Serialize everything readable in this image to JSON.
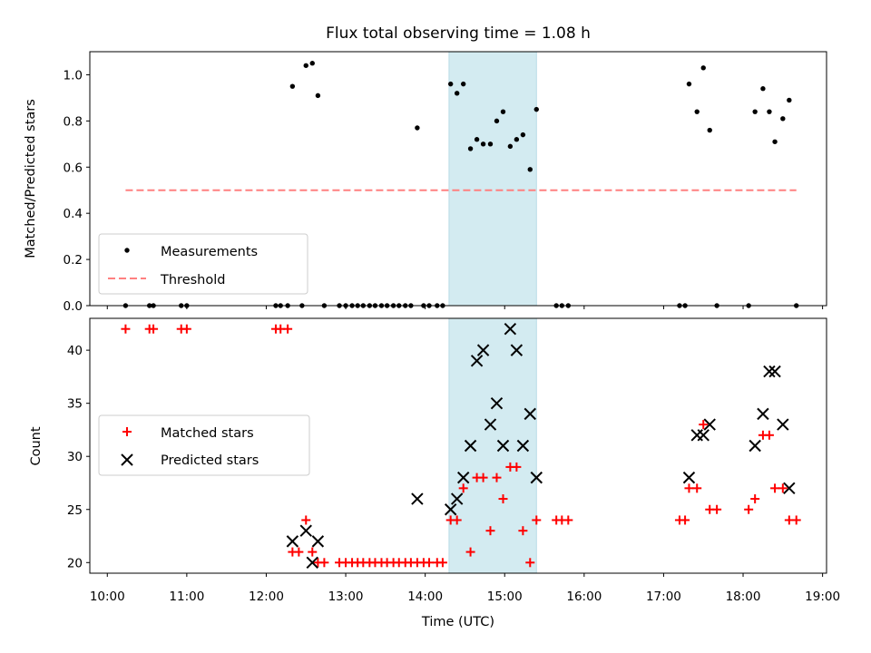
{
  "chart_data": {
    "type": "scatter",
    "title": "Flux total observing time = 1.08 h",
    "xlabel": "Time (UTC)",
    "xlim": [
      9.78,
      19.05
    ],
    "x_ticks": [
      10,
      11,
      12,
      13,
      14,
      15,
      16,
      17,
      18,
      19
    ],
    "x_tick_labels": [
      "10:00",
      "11:00",
      "12:00",
      "13:00",
      "14:00",
      "15:00",
      "16:00",
      "17:00",
      "18:00",
      "19:00"
    ],
    "highlight_span": [
      14.3,
      15.4
    ],
    "colors": {
      "highlight": "#d3ebf1",
      "threshold": "#ff8080",
      "matched": "#ff0000",
      "predicted": "#000000"
    },
    "top": {
      "ylabel": "Matched/Predicted stars",
      "ylim": [
        0,
        1.1
      ],
      "y_ticks": [
        0.0,
        0.2,
        0.4,
        0.6,
        0.8,
        1.0
      ],
      "y_tick_labels": [
        "0.0",
        "0.2",
        "0.4",
        "0.6",
        "0.8",
        "1.0"
      ],
      "legend": {
        "placement": "lower-left",
        "entries": [
          "Measurements",
          "Threshold"
        ]
      },
      "threshold": {
        "name": "Threshold",
        "y": 0.5,
        "x_range": [
          10.23,
          18.67
        ]
      },
      "measurements": {
        "name": "Measurements",
        "points": [
          [
            10.23,
            0
          ],
          [
            10.53,
            0
          ],
          [
            10.58,
            0
          ],
          [
            10.93,
            0
          ],
          [
            11.0,
            0
          ],
          [
            12.12,
            0
          ],
          [
            12.18,
            0
          ],
          [
            12.27,
            0
          ],
          [
            12.33,
            0.95
          ],
          [
            12.45,
            0
          ],
          [
            12.5,
            1.04
          ],
          [
            12.58,
            1.05
          ],
          [
            12.65,
            0.91
          ],
          [
            12.73,
            0
          ],
          [
            12.92,
            0
          ],
          [
            13.0,
            0
          ],
          [
            13.08,
            0
          ],
          [
            13.15,
            0
          ],
          [
            13.22,
            0
          ],
          [
            13.3,
            0
          ],
          [
            13.37,
            0
          ],
          [
            13.45,
            0
          ],
          [
            13.52,
            0
          ],
          [
            13.6,
            0
          ],
          [
            13.67,
            0
          ],
          [
            13.75,
            0
          ],
          [
            13.82,
            0
          ],
          [
            13.9,
            0.77
          ],
          [
            13.98,
            0
          ],
          [
            14.05,
            0
          ],
          [
            14.15,
            0
          ],
          [
            14.22,
            0
          ],
          [
            14.32,
            0.96
          ],
          [
            14.4,
            0.92
          ],
          [
            14.48,
            0.96
          ],
          [
            14.57,
            0.68
          ],
          [
            14.65,
            0.72
          ],
          [
            14.73,
            0.7
          ],
          [
            14.82,
            0.7
          ],
          [
            14.9,
            0.8
          ],
          [
            14.98,
            0.84
          ],
          [
            15.07,
            0.69
          ],
          [
            15.15,
            0.72
          ],
          [
            15.23,
            0.74
          ],
          [
            15.32,
            0.59
          ],
          [
            15.4,
            0.85
          ],
          [
            15.65,
            0
          ],
          [
            15.72,
            0
          ],
          [
            15.8,
            0
          ],
          [
            17.2,
            0
          ],
          [
            17.27,
            0
          ],
          [
            17.32,
            0.96
          ],
          [
            17.42,
            0.84
          ],
          [
            17.5,
            1.03
          ],
          [
            17.58,
            0.76
          ],
          [
            17.67,
            0
          ],
          [
            18.07,
            0
          ],
          [
            18.15,
            0.84
          ],
          [
            18.25,
            0.94
          ],
          [
            18.33,
            0.84
          ],
          [
            18.4,
            0.71
          ],
          [
            18.5,
            0.81
          ],
          [
            18.58,
            0.89
          ],
          [
            18.67,
            0
          ]
        ]
      }
    },
    "bottom": {
      "ylabel": "Count",
      "ylim": [
        19,
        43
      ],
      "y_ticks": [
        20,
        25,
        30,
        35,
        40
      ],
      "y_tick_labels": [
        "20",
        "25",
        "30",
        "35",
        "40"
      ],
      "legend": {
        "placement": "center-left",
        "entries": [
          "Matched stars",
          "Predicted stars"
        ]
      },
      "matched": {
        "name": "Matched stars",
        "points": [
          [
            10.23,
            42
          ],
          [
            10.53,
            42
          ],
          [
            10.58,
            42
          ],
          [
            10.93,
            42
          ],
          [
            11.0,
            42
          ],
          [
            12.12,
            42
          ],
          [
            12.18,
            42
          ],
          [
            12.27,
            42
          ],
          [
            12.33,
            21
          ],
          [
            12.41,
            21
          ],
          [
            12.5,
            24
          ],
          [
            12.58,
            21
          ],
          [
            12.65,
            20
          ],
          [
            12.73,
            20
          ],
          [
            12.92,
            20
          ],
          [
            13.0,
            20
          ],
          [
            13.08,
            20
          ],
          [
            13.15,
            20
          ],
          [
            13.22,
            20
          ],
          [
            13.3,
            20
          ],
          [
            13.37,
            20
          ],
          [
            13.45,
            20
          ],
          [
            13.52,
            20
          ],
          [
            13.6,
            20
          ],
          [
            13.67,
            20
          ],
          [
            13.75,
            20
          ],
          [
            13.82,
            20
          ],
          [
            13.9,
            20
          ],
          [
            13.98,
            20
          ],
          [
            14.05,
            20
          ],
          [
            14.15,
            20
          ],
          [
            14.22,
            20
          ],
          [
            14.32,
            24
          ],
          [
            14.4,
            24
          ],
          [
            14.48,
            27
          ],
          [
            14.57,
            21
          ],
          [
            14.65,
            28
          ],
          [
            14.73,
            28
          ],
          [
            14.82,
            23
          ],
          [
            14.9,
            28
          ],
          [
            14.98,
            26
          ],
          [
            15.07,
            29
          ],
          [
            15.15,
            29
          ],
          [
            15.23,
            23
          ],
          [
            15.32,
            20
          ],
          [
            15.4,
            24
          ],
          [
            15.65,
            24
          ],
          [
            15.72,
            24
          ],
          [
            15.8,
            24
          ],
          [
            17.2,
            24
          ],
          [
            17.27,
            24
          ],
          [
            17.32,
            27
          ],
          [
            17.42,
            27
          ],
          [
            17.5,
            33
          ],
          [
            17.58,
            25
          ],
          [
            17.67,
            25
          ],
          [
            18.07,
            25
          ],
          [
            18.15,
            26
          ],
          [
            18.25,
            32
          ],
          [
            18.33,
            32
          ],
          [
            18.4,
            27
          ],
          [
            18.5,
            27
          ],
          [
            18.58,
            24
          ],
          [
            18.67,
            24
          ]
        ]
      },
      "predicted": {
        "name": "Predicted stars",
        "points": [
          [
            12.33,
            22
          ],
          [
            12.5,
            23
          ],
          [
            12.58,
            20
          ],
          [
            12.65,
            22
          ],
          [
            13.9,
            26
          ],
          [
            14.32,
            25
          ],
          [
            14.4,
            26
          ],
          [
            14.48,
            28
          ],
          [
            14.57,
            31
          ],
          [
            14.65,
            39
          ],
          [
            14.73,
            40
          ],
          [
            14.82,
            33
          ],
          [
            14.9,
            35
          ],
          [
            14.98,
            31
          ],
          [
            15.07,
            42
          ],
          [
            15.15,
            40
          ],
          [
            15.23,
            31
          ],
          [
            15.32,
            34
          ],
          [
            15.4,
            28
          ],
          [
            17.32,
            28
          ],
          [
            17.42,
            32
          ],
          [
            17.5,
            32
          ],
          [
            17.58,
            33
          ],
          [
            18.15,
            31
          ],
          [
            18.25,
            34
          ],
          [
            18.33,
            38
          ],
          [
            18.4,
            38
          ],
          [
            18.5,
            33
          ],
          [
            18.58,
            27
          ]
        ]
      }
    }
  }
}
